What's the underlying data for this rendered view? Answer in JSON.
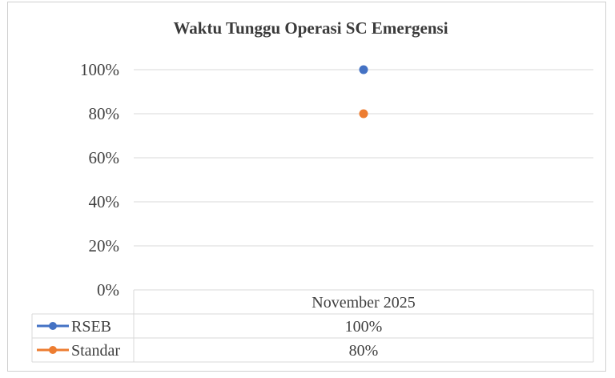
{
  "chart_data": {
    "type": "line",
    "title": "Waktu Tunggu Operasi SC Emergensi",
    "categories": [
      "November 2025"
    ],
    "yticks": [
      "100%",
      "80%",
      "60%",
      "40%",
      "20%",
      "0%"
    ],
    "ylim": [
      0,
      100
    ],
    "grid": true,
    "legend": "data-table",
    "series": [
      {
        "name": "RSEB",
        "values": [
          100
        ],
        "labels": [
          "100%"
        ],
        "color": "#4472C4"
      },
      {
        "name": "Standar",
        "values": [
          80
        ],
        "labels": [
          "80%"
        ],
        "color": "#ED7D31"
      }
    ]
  }
}
